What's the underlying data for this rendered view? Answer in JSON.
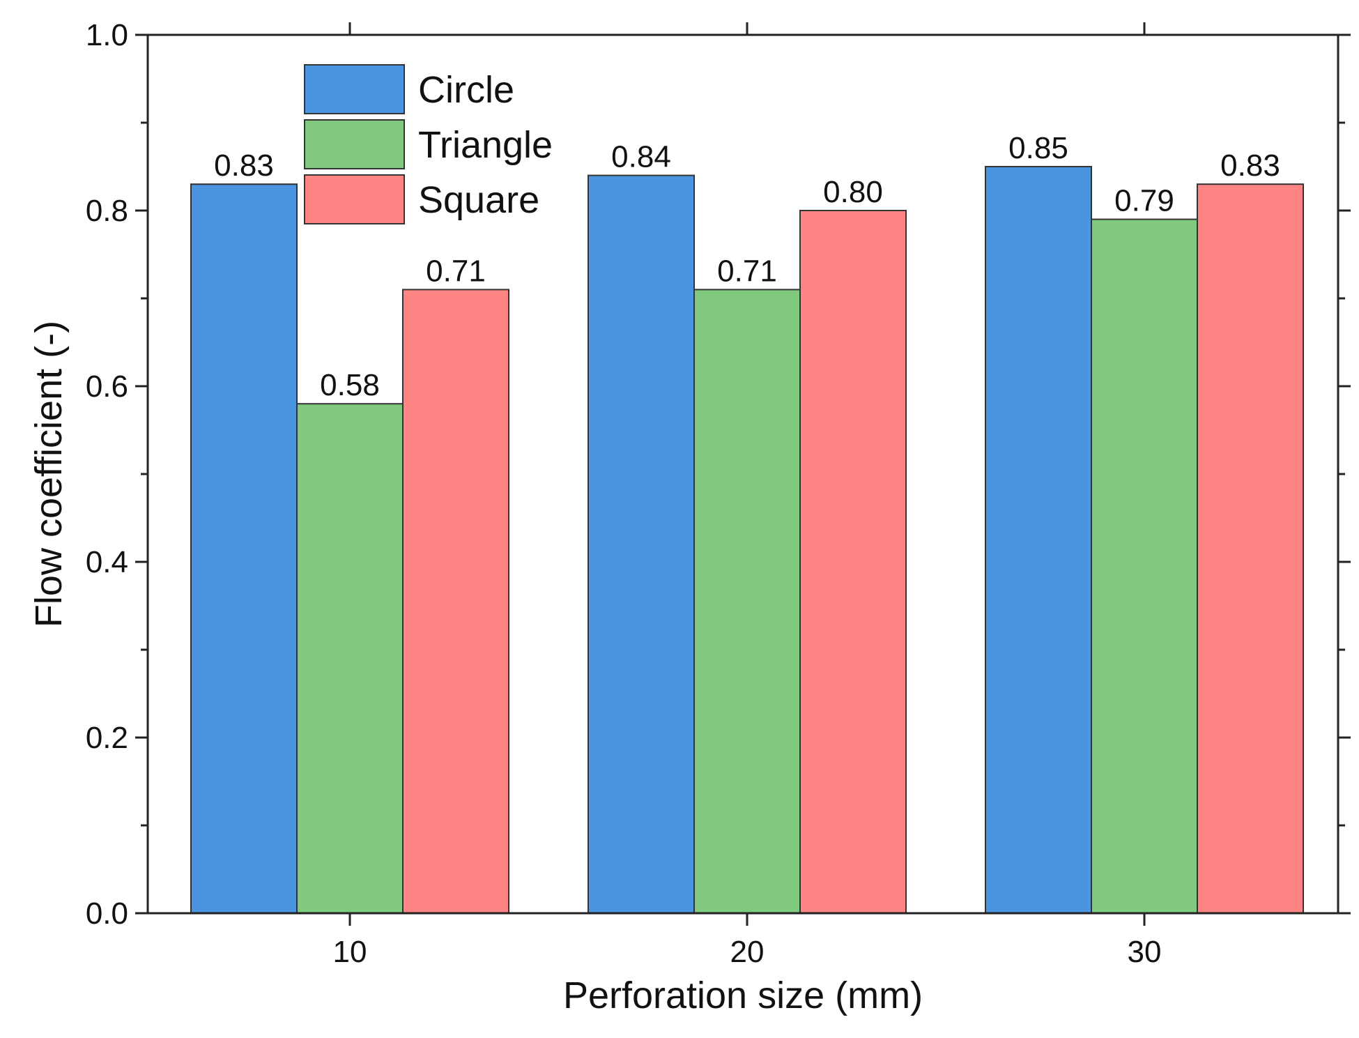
{
  "chart_data": {
    "type": "bar",
    "title": "",
    "xlabel": "Perforation size (mm)",
    "ylabel": "Flow coefficient (-)",
    "categories": [
      "10",
      "20",
      "30"
    ],
    "ylim": [
      0,
      1.0
    ],
    "yticks": [
      "0.0",
      "0.2",
      "0.4",
      "0.6",
      "0.8",
      "1.0"
    ],
    "yticks_values": [
      0,
      0.2,
      0.4,
      0.6,
      0.8,
      1.0
    ],
    "minor_tick_step": 0.1,
    "grid": false,
    "legend_position": "top-left",
    "series": [
      {
        "name": "Circle",
        "color": "#4a94e0",
        "values": [
          0.83,
          0.84,
          0.85
        ],
        "labels": [
          "0.83",
          "0.84",
          "0.85"
        ]
      },
      {
        "name": "Triangle",
        "color": "#80c97e",
        "values": [
          0.58,
          0.71,
          0.79
        ],
        "labels": [
          "0.58",
          "0.71",
          "0.79"
        ]
      },
      {
        "name": "Square",
        "color": "#ff8585",
        "values": [
          0.71,
          0.8,
          0.83
        ],
        "labels": [
          "0.71",
          "0.80",
          "0.83"
        ]
      }
    ]
  }
}
